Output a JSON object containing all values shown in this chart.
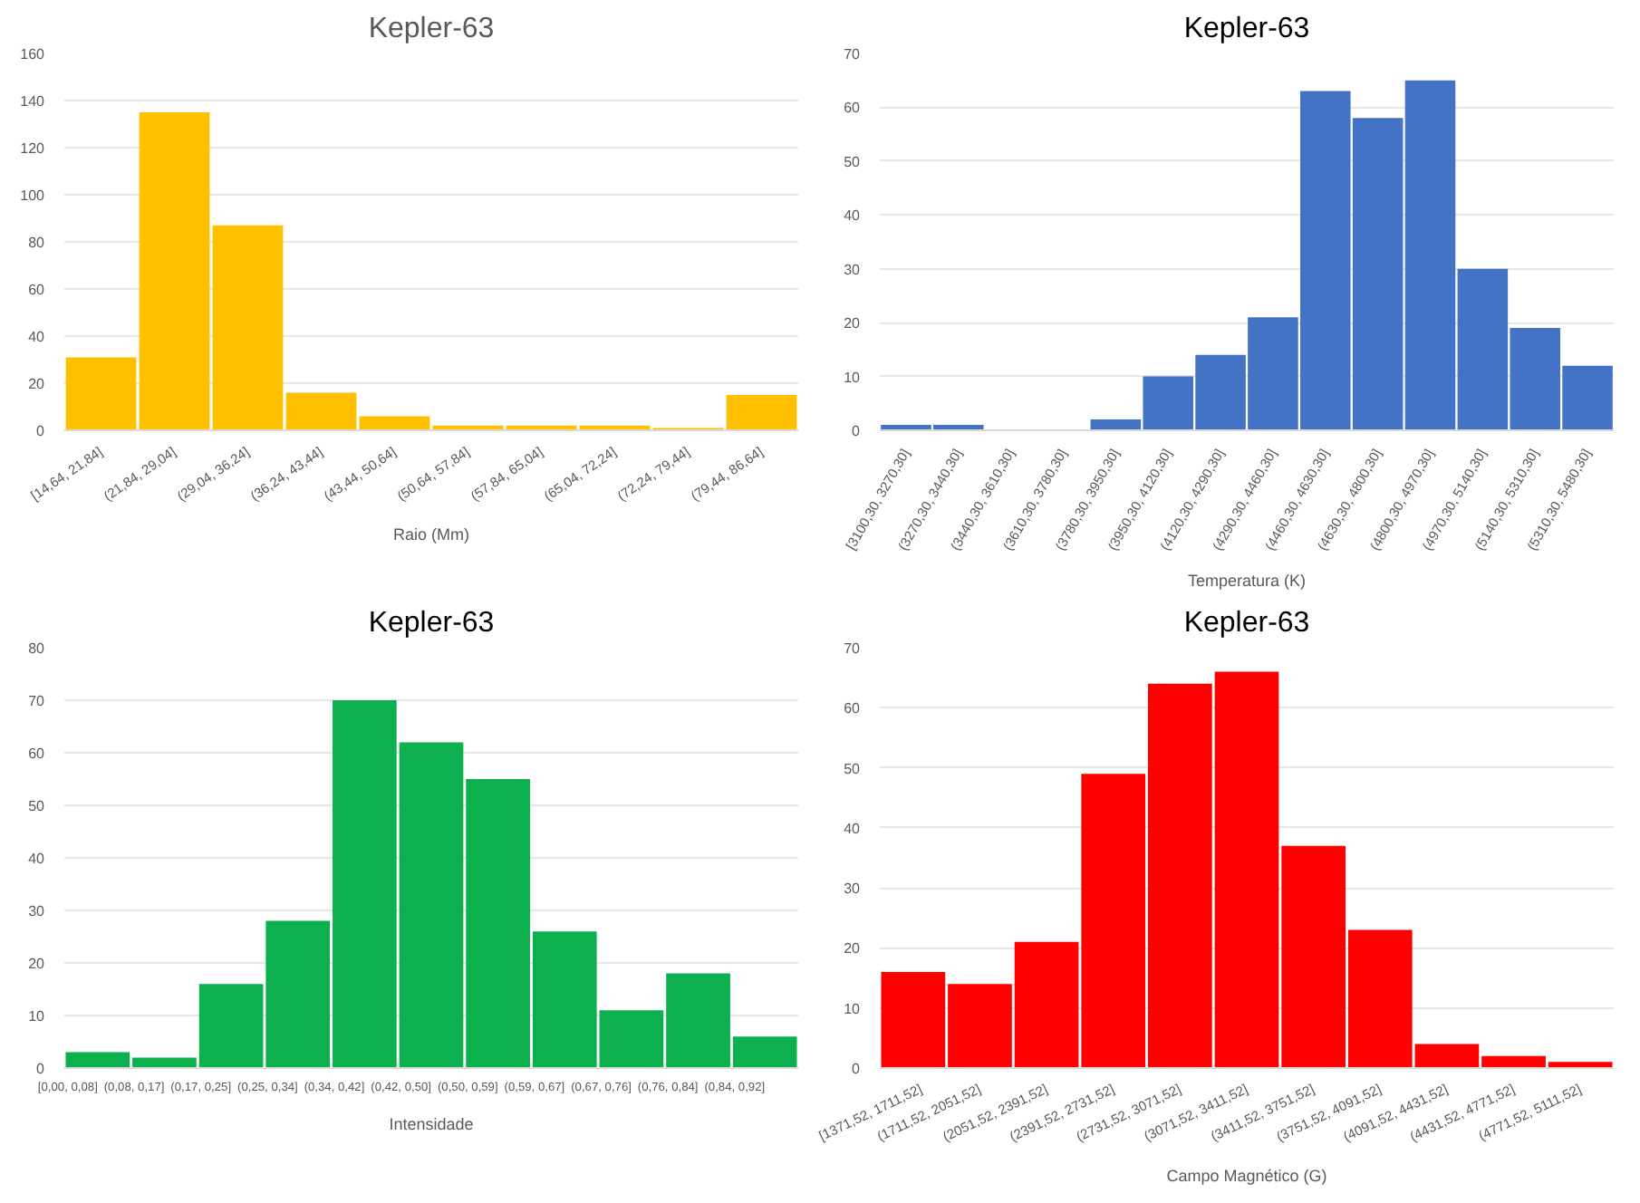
{
  "chart_data": [
    {
      "type": "bar",
      "title": "Kepler-63",
      "xlabel": "Raio (Mm)",
      "color": "#ffc000",
      "grid": "y",
      "ylim": [
        0,
        160
      ],
      "yticks": [
        0,
        20,
        40,
        60,
        80,
        100,
        120,
        140,
        160
      ],
      "categories": [
        "[14,64, 21,84]",
        "(21,84, 29,04]",
        "(29,04, 36,24]",
        "(36,24, 43,44]",
        "(43,44, 50,64]",
        "(50,64, 57,84]",
        "(57,84, 65,04]",
        "(65,04, 72,24]",
        "(72,24, 79,44]",
        "(79,44, 86,64]"
      ],
      "values": [
        31,
        135,
        87,
        16,
        6,
        2,
        2,
        2,
        1,
        15
      ]
    },
    {
      "type": "bar",
      "title": "Kepler-63",
      "xlabel": "Temperatura (K)",
      "color": "#4472c4",
      "grid": "y",
      "ylim": [
        0,
        70
      ],
      "yticks": [
        0,
        10,
        20,
        30,
        40,
        50,
        60,
        70
      ],
      "categories": [
        "[3100,30, 3270,30]",
        "(3270,30, 3440,30]",
        "(3440,30, 3610,30]",
        "(3610,30, 3780,30]",
        "(3780,30, 3950,30]",
        "(3950,30, 4120,30]",
        "(4120,30, 4290,30]",
        "(4290,30, 4460,30]",
        "(4460,30, 4630,30]",
        "(4630,30, 4800,30]",
        "(4800,30, 4970,30]",
        "(4970,30, 5140,30]",
        "(5140,30, 5310,30]",
        "(5310,30, 5480,30]"
      ],
      "values": [
        1,
        1,
        0,
        0,
        2,
        10,
        14,
        21,
        63,
        58,
        65,
        30,
        19,
        12
      ]
    },
    {
      "type": "bar",
      "title": "Kepler-63",
      "xlabel": "Intensidade",
      "color": "#0db04f",
      "grid": "y",
      "ylim": [
        0,
        80
      ],
      "yticks": [
        0,
        10,
        20,
        30,
        40,
        50,
        60,
        70,
        80
      ],
      "categories": [
        "[0,00, 0,08]",
        "(0,08, 0,17]",
        "(0,17, 0,25]",
        "(0,25, 0,34]",
        "(0,34, 0,42]",
        "(0,42, 0,50]",
        "(0,50, 0,59]",
        "(0,59, 0,67]",
        "(0,67, 0,76]",
        "(0,76, 0,84]",
        "(0,84, 0,92]"
      ],
      "values": [
        3,
        2,
        16,
        28,
        70,
        62,
        55,
        26,
        11,
        18,
        6
      ]
    },
    {
      "type": "bar",
      "title": "Kepler-63",
      "xlabel": "Campo Magnético (G)",
      "color": "#ff0000",
      "grid": "y",
      "ylim": [
        0,
        70
      ],
      "yticks": [
        0,
        10,
        20,
        30,
        40,
        50,
        60,
        70
      ],
      "categories": [
        "[1371,52, 1711,52]",
        "(1711,52, 2051,52]",
        "(2051,52, 2391,52]",
        "(2391,52, 2731,52]",
        "(2731,52, 3071,52]",
        "(3071,52, 3411,52]",
        "(3411,52, 3751,52]",
        "(3751,52, 4091,52]",
        "(4091,52, 4431,52]",
        "(4431,52, 4771,52]",
        "(4771,52, 5111,52]"
      ],
      "values": [
        16,
        14,
        21,
        49,
        64,
        66,
        37,
        23,
        4,
        2,
        1
      ]
    }
  ]
}
